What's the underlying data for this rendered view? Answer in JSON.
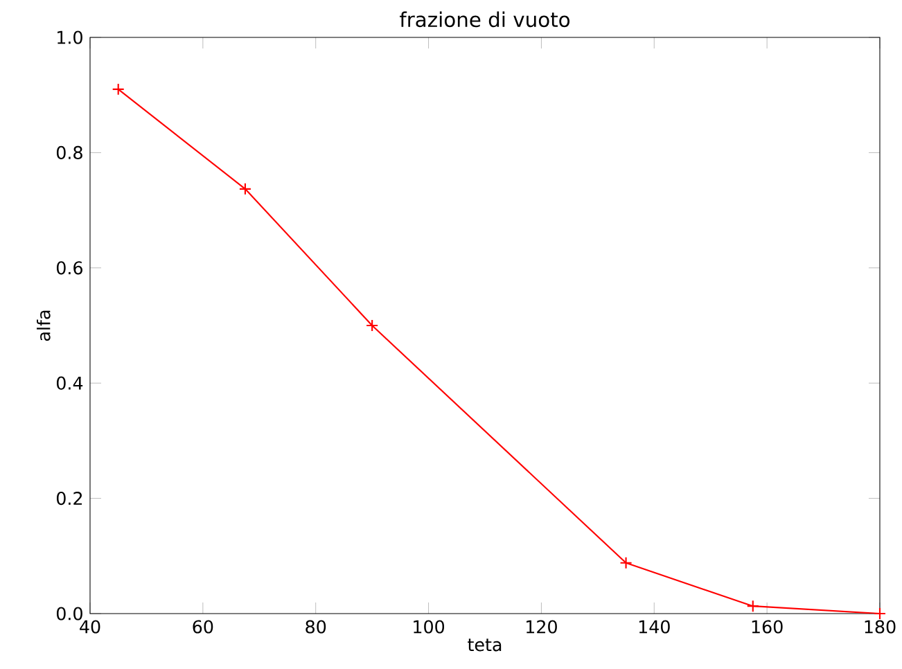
{
  "chart_data": {
    "type": "line",
    "title": "frazione di vuoto",
    "xlabel": "teta",
    "ylabel": "alfa",
    "x": [
      45,
      67.5,
      90,
      135,
      157.5,
      180
    ],
    "series": [
      {
        "color": "#ff0000",
        "values": [
          0.91,
          0.737,
          0.5,
          0.088,
          0.013,
          0.0
        ]
      }
    ],
    "xlim": [
      40,
      180
    ],
    "ylim": [
      0,
      1.0
    ],
    "xticks": [
      40,
      60,
      80,
      100,
      120,
      140,
      160,
      180
    ],
    "yticks": [
      {
        "value": 0,
        "label": "0.0"
      },
      {
        "value": 0.2,
        "label": "0.2"
      },
      {
        "value": 0.4,
        "label": "0.4"
      },
      {
        "value": 0.6,
        "label": "0.6"
      },
      {
        "value": 0.8,
        "label": "0.8"
      },
      {
        "value": 1.0,
        "label": "1.0"
      }
    ],
    "marker": "cross",
    "line_style": "solid"
  }
}
